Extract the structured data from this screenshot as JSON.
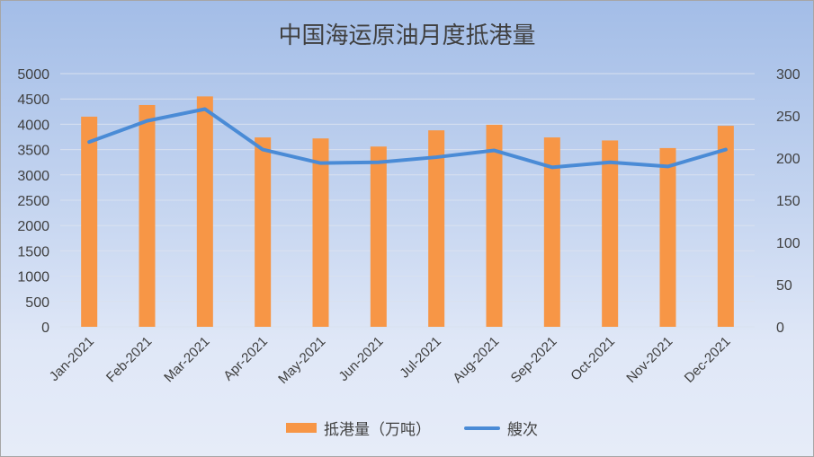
{
  "chart_data": {
    "type": "bar",
    "title": "中国海运原油月度抵港量",
    "categories": [
      "Jan-2021",
      "Feb-2021",
      "Mar-2021",
      "Apr-2021",
      "May-2021",
      "Jun-2021",
      "Jul-2021",
      "Aug-2021",
      "Sep-2021",
      "Oct-2021",
      "Nov-2021",
      "Dec-2021"
    ],
    "series": [
      {
        "name": "抵港量（万吨）",
        "type": "bar",
        "axis": "left",
        "color": "#f79646",
        "values": [
          4150,
          4380,
          4550,
          3740,
          3720,
          3560,
          3880,
          3990,
          3740,
          3680,
          3530,
          3970
        ]
      },
      {
        "name": "艘次",
        "type": "line",
        "axis": "right",
        "color": "#4a8bd6",
        "values": [
          219,
          244,
          258,
          210,
          194,
          195,
          201,
          209,
          189,
          195,
          190,
          210
        ]
      }
    ],
    "ylim_left": [
      0,
      5000
    ],
    "yticks_left": [
      "0",
      "500",
      "1000",
      "1500",
      "2000",
      "2500",
      "3000",
      "3500",
      "4000",
      "4500",
      "5000"
    ],
    "ylim_right": [
      0,
      300
    ],
    "yticks_right": [
      "0",
      "50",
      "100",
      "150",
      "200",
      "250",
      "300"
    ],
    "grid": true,
    "legend_position": "bottom"
  }
}
